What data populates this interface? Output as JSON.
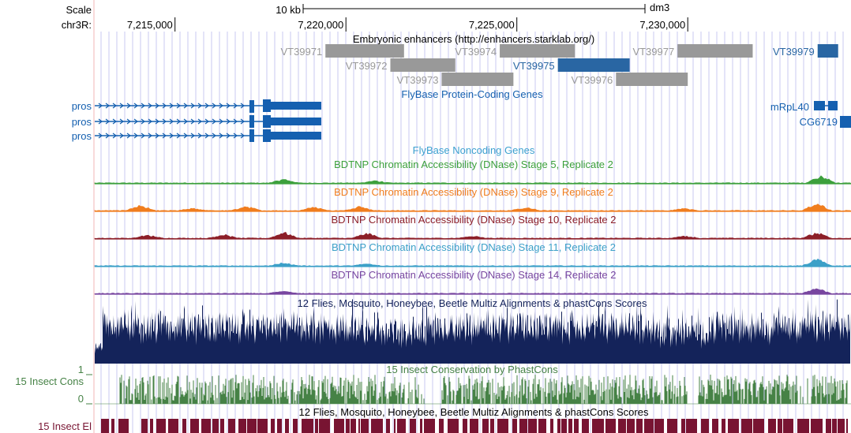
{
  "ruler": {
    "scale_label": "Scale",
    "chrom_label": "chr3R:",
    "scale_bar_text": "10 kb",
    "assembly": "dm3",
    "ticks": [
      {
        "label": "7,215,000",
        "pos": 7215000
      },
      {
        "label": "7,220,000",
        "pos": 7220000
      },
      {
        "label": "7,225,000",
        "pos": 7225000
      },
      {
        "label": "7,230,000",
        "pos": 7230000
      }
    ]
  },
  "enhancers": {
    "title": "Embryonic enhancers (http://enhancers.starklab.org/)",
    "items": [
      {
        "name": "VT39971",
        "start": 7219400,
        "end": 7221700,
        "row": 0,
        "highlight": false
      },
      {
        "name": "VT39974",
        "start": 7224500,
        "end": 7226700,
        "row": 0,
        "highlight": false
      },
      {
        "name": "VT39977",
        "start": 7229700,
        "end": 7231900,
        "row": 0,
        "highlight": false
      },
      {
        "name": "VT39979",
        "start": 7233800,
        "end": 7234400,
        "row": 0,
        "highlight": true
      },
      {
        "name": "VT39972",
        "start": 7221300,
        "end": 7223200,
        "row": 1,
        "highlight": false
      },
      {
        "name": "VT39975",
        "start": 7226200,
        "end": 7228300,
        "row": 1,
        "highlight": true
      },
      {
        "name": "VT39973",
        "start": 7222800,
        "end": 7224900,
        "row": 2,
        "highlight": false
      },
      {
        "name": "VT39976",
        "start": 7227900,
        "end": 7230000,
        "row": 2,
        "highlight": false
      }
    ]
  },
  "genes": {
    "title": "FlyBase Protein-Coding Genes",
    "pros_transcripts": [
      "pros",
      "pros",
      "pros"
    ],
    "right_genes": [
      {
        "name": "mRpL40",
        "row": 0
      },
      {
        "name": "CG6719",
        "row": 1
      }
    ]
  },
  "noncoding": {
    "title": "FlyBase Noncoding Genes"
  },
  "dnase_tracks": [
    {
      "title": "BDTNP Chromatin Accessibility (DNase) Stage 5, Replicate 2",
      "color": "#3ca03c",
      "peaks": [
        [
          0.25,
          0.5
        ],
        [
          0.37,
          0.3
        ],
        [
          0.96,
          1.0
        ]
      ]
    },
    {
      "title": "BDTNP Chromatin Accessibility (DNase) Stage 9, Replicate 2",
      "color": "#f07d1e",
      "peaks": [
        [
          0.06,
          0.7
        ],
        [
          0.13,
          0.3
        ],
        [
          0.2,
          0.6
        ],
        [
          0.29,
          0.5
        ],
        [
          0.35,
          0.6
        ],
        [
          0.57,
          0.4
        ],
        [
          0.78,
          0.3
        ],
        [
          0.955,
          1.0
        ]
      ]
    },
    {
      "title": "BDTNP Chromatin Accessibility (DNase) Stage 10, Replicate 2",
      "color": "#8c1e28",
      "peaks": [
        [
          0.07,
          0.4
        ],
        [
          0.17,
          0.5
        ],
        [
          0.25,
          0.8
        ],
        [
          0.36,
          0.7
        ],
        [
          0.5,
          0.3
        ],
        [
          0.78,
          0.3
        ],
        [
          0.955,
          0.8
        ]
      ]
    },
    {
      "title": "BDTNP Chromatin Accessibility (DNase) Stage 11, Replicate 2",
      "color": "#3ca0c8",
      "peaks": [
        [
          0.25,
          0.4
        ],
        [
          0.36,
          0.3
        ],
        [
          0.955,
          0.9
        ]
      ]
    },
    {
      "title": "BDTNP Chromatin Accessibility (DNase) Stage 14, Replicate 2",
      "color": "#7846a0",
      "peaks": [
        [
          0.25,
          0.3
        ],
        [
          0.955,
          0.7
        ]
      ]
    }
  ],
  "multiz": {
    "title": "12 Flies, Mosquito, Honeybee, Beetle Multiz Alignments & phastCons Scores",
    "color": "#14235a"
  },
  "insect_cons": {
    "side_label": "15 Insect Cons",
    "title": "15 Insect Conservation by PhastCons",
    "y_max": "1",
    "y_min": "0",
    "color": "#468246"
  },
  "insect_el": {
    "side_label": "15 Insect El",
    "title": "12 Flies, Mosquito, Honeybee, Beetle Multiz Alignments & phastCons Scores",
    "color": "#781432"
  },
  "colors": {
    "gene_blue": "#1560b0",
    "enhancer_gray": "#999999",
    "enhancer_blue": "#2966a3",
    "grid": "#c8c8f0",
    "red_line": "#f0b4b4"
  }
}
